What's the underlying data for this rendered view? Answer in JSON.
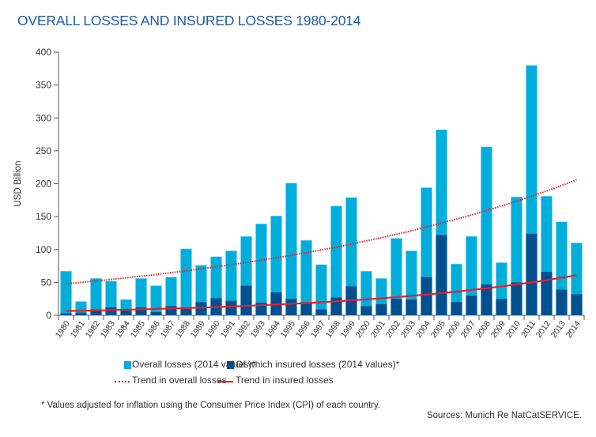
{
  "chart_data": {
    "type": "bar",
    "title": "OVERALL LOSSES AND INSURED LOSSES 1980-2014",
    "ylabel": "USD Billion",
    "xlabel": "",
    "ylim": [
      0,
      400
    ],
    "yticks": [
      0,
      50,
      100,
      150,
      200,
      250,
      300,
      350,
      400
    ],
    "grid": false,
    "legend_position": "bottom",
    "colors": {
      "overall": "#00aedb",
      "insured": "#004f8f",
      "trend": "#e8202a"
    },
    "categories": [
      "1980",
      "1981",
      "1982",
      "1983",
      "1984",
      "1985",
      "1986",
      "1987",
      "1988",
      "1989",
      "1990",
      "1991",
      "1992",
      "1993",
      "1994",
      "1995",
      "1996",
      "1997",
      "1998",
      "1999",
      "2000",
      "2001",
      "2002",
      "2003",
      "2004",
      "2005",
      "2006",
      "2007",
      "2008",
      "2009",
      "2010",
      "2011",
      "2012",
      "2013",
      "2014"
    ],
    "series": [
      {
        "name": "Overall losses (2014 values)*",
        "values": [
          67,
          21,
          56,
          52,
          24,
          56,
          45,
          58,
          101,
          76,
          89,
          98,
          120,
          139,
          151,
          201,
          114,
          77,
          166,
          179,
          67,
          56,
          117,
          98,
          194,
          282,
          78,
          120,
          256,
          80,
          180,
          380,
          181,
          142,
          110
        ]
      },
      {
        "name": "Of which insured losses (2014 values)*",
        "values": [
          3,
          4,
          9,
          12,
          7,
          12,
          5,
          14,
          10,
          20,
          26,
          22,
          45,
          19,
          35,
          25,
          20,
          9,
          27,
          44,
          14,
          17,
          25,
          24,
          58,
          122,
          20,
          30,
          47,
          25,
          50,
          124,
          66,
          39,
          32
        ]
      }
    ],
    "trends": [
      {
        "name": "Trend in overall losses",
        "style": "dotted",
        "start": {
          "x": "1980",
          "y": 48
        },
        "end": {
          "x": "2014",
          "y": 206
        }
      },
      {
        "name": "Trend in insured losses",
        "style": "solid",
        "start": {
          "x": "1980",
          "y": 6.5
        },
        "end": {
          "x": "2014",
          "y": 61
        }
      }
    ],
    "footnote": "* Values adjusted for inflation using the Consumer Price Index (CPI) of each country.",
    "source": "Sources: Munich Re NatCatSERVICE."
  }
}
